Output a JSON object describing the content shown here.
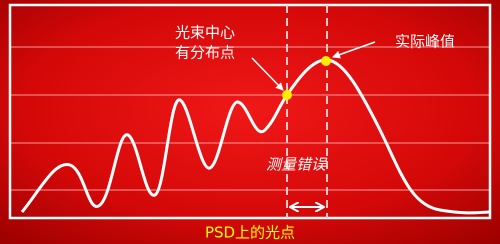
{
  "labels": {
    "beam_center": [
      "光束中心",
      "有分布点"
    ],
    "actual_peak": "实际峰值",
    "measurement_error": "测量错误",
    "psd_spot": "PSD上的光点"
  }
}
